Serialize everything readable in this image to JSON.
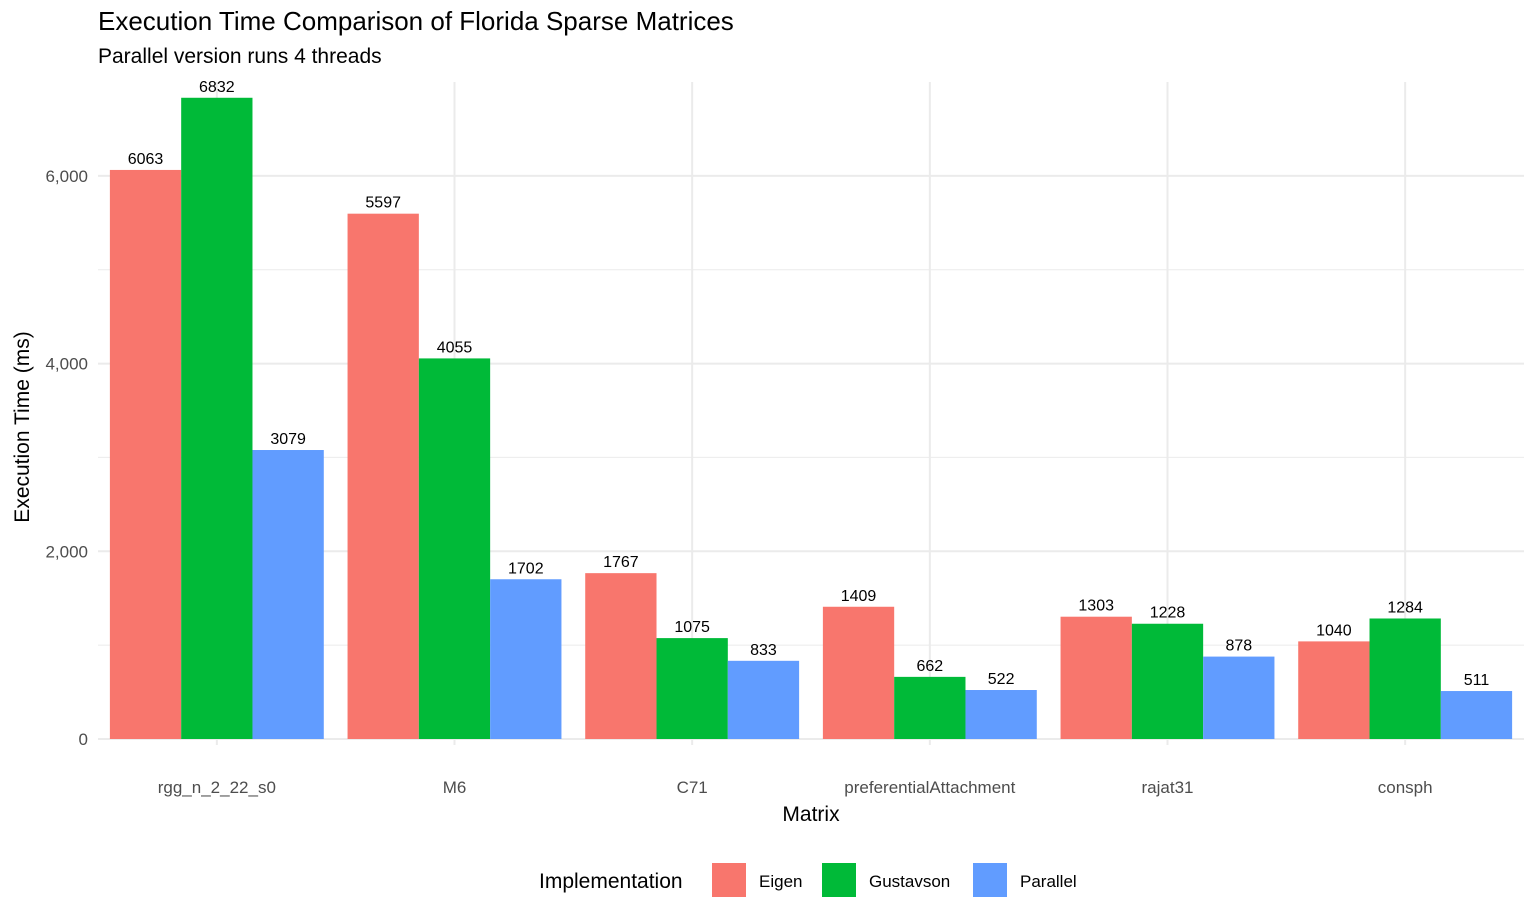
{
  "chart_data": {
    "type": "bar",
    "title": "Execution Time Comparison of Florida Sparse Matrices",
    "subtitle": "Parallel version runs 4 threads",
    "xlabel": "Matrix",
    "ylabel": "Execution Time (ms)",
    "categories": [
      "rgg_n_2_22_s0",
      "M6",
      "C71",
      "preferentialAttachment",
      "rajat31",
      "consph"
    ],
    "series": [
      {
        "name": "Eigen",
        "color": "#F8766D",
        "values": [
          6063,
          5597,
          1767,
          1409,
          1303,
          1040
        ]
      },
      {
        "name": "Gustavson",
        "color": "#00BA38",
        "values": [
          6832,
          4055,
          1075,
          662,
          1228,
          1284
        ]
      },
      {
        "name": "Parallel",
        "color": "#619CFF",
        "values": [
          3079,
          1702,
          833,
          522,
          878,
          511
        ]
      }
    ],
    "ylim": [
      0,
      7000
    ],
    "yticks": [
      0,
      2000,
      4000,
      6000
    ],
    "ytick_labels": [
      "0",
      "2,000",
      "4,000",
      "6,000"
    ],
    "legend": {
      "title": "Implementation",
      "position": "bottom"
    },
    "grid": true
  }
}
